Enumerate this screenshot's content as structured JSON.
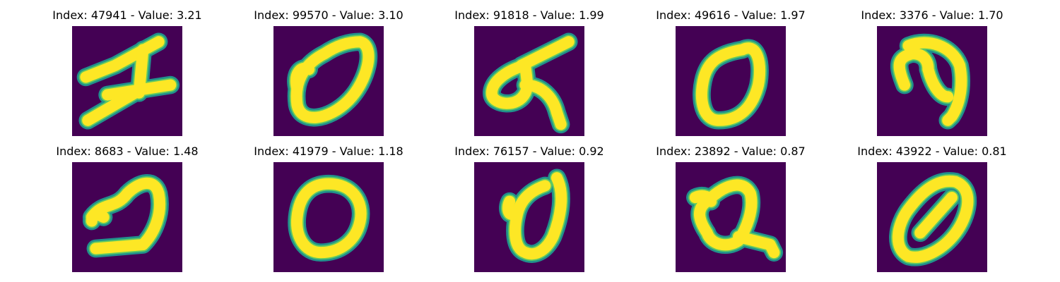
{
  "colors": {
    "background": "#440154",
    "stroke_edge": "#21918c",
    "stroke_mid": "#5ec962",
    "stroke_core": "#fde725"
  },
  "panels": [
    {
      "title": "Index: 47941 - Value: 3.21",
      "digit": "1"
    },
    {
      "title": "Index: 99570 - Value: 3.10",
      "digit": "0"
    },
    {
      "title": "Index: 91818 - Value: 1.99",
      "digit": "7"
    },
    {
      "title": "Index: 49616 - Value: 1.97",
      "digit": "0"
    },
    {
      "title": "Index: 3376 - Value: 1.70",
      "digit": "3"
    },
    {
      "title": "Index: 8683 - Value: 1.48",
      "digit": "2"
    },
    {
      "title": "Index: 41979 - Value: 1.18",
      "digit": "0"
    },
    {
      "title": "Index: 76157 - Value: 0.92",
      "digit": "0"
    },
    {
      "title": "Index: 23892 - Value: 0.87",
      "digit": "2"
    },
    {
      "title": "Index: 43922 - Value: 0.81",
      "digit": "0"
    }
  ]
}
